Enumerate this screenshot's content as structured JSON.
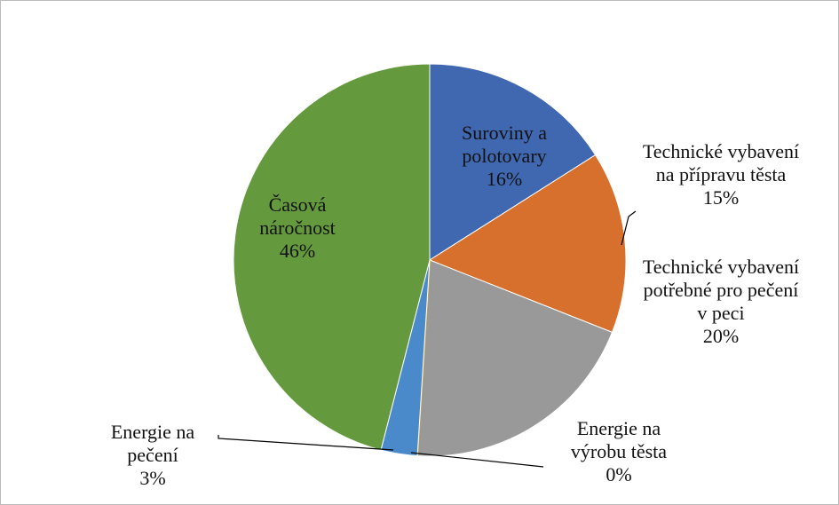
{
  "chart_data": {
    "type": "pie",
    "categories": [
      "Suroviny a polotovary",
      "Technické vybavení na přípravu těsta",
      "Technické vybavení potřebné pro pečení v peci",
      "Energie na výrobu těsta",
      "Energie na pečení",
      "Časová náročnost"
    ],
    "values": [
      16,
      15,
      20,
      0,
      3,
      46
    ],
    "value_labels": [
      "16%",
      "15%",
      "20%",
      "0%",
      "3%",
      "46%"
    ],
    "colors": [
      "#4068b0",
      "#d6702c",
      "#999999",
      "#e8b020",
      "#4a8acb",
      "#64993e"
    ]
  }
}
